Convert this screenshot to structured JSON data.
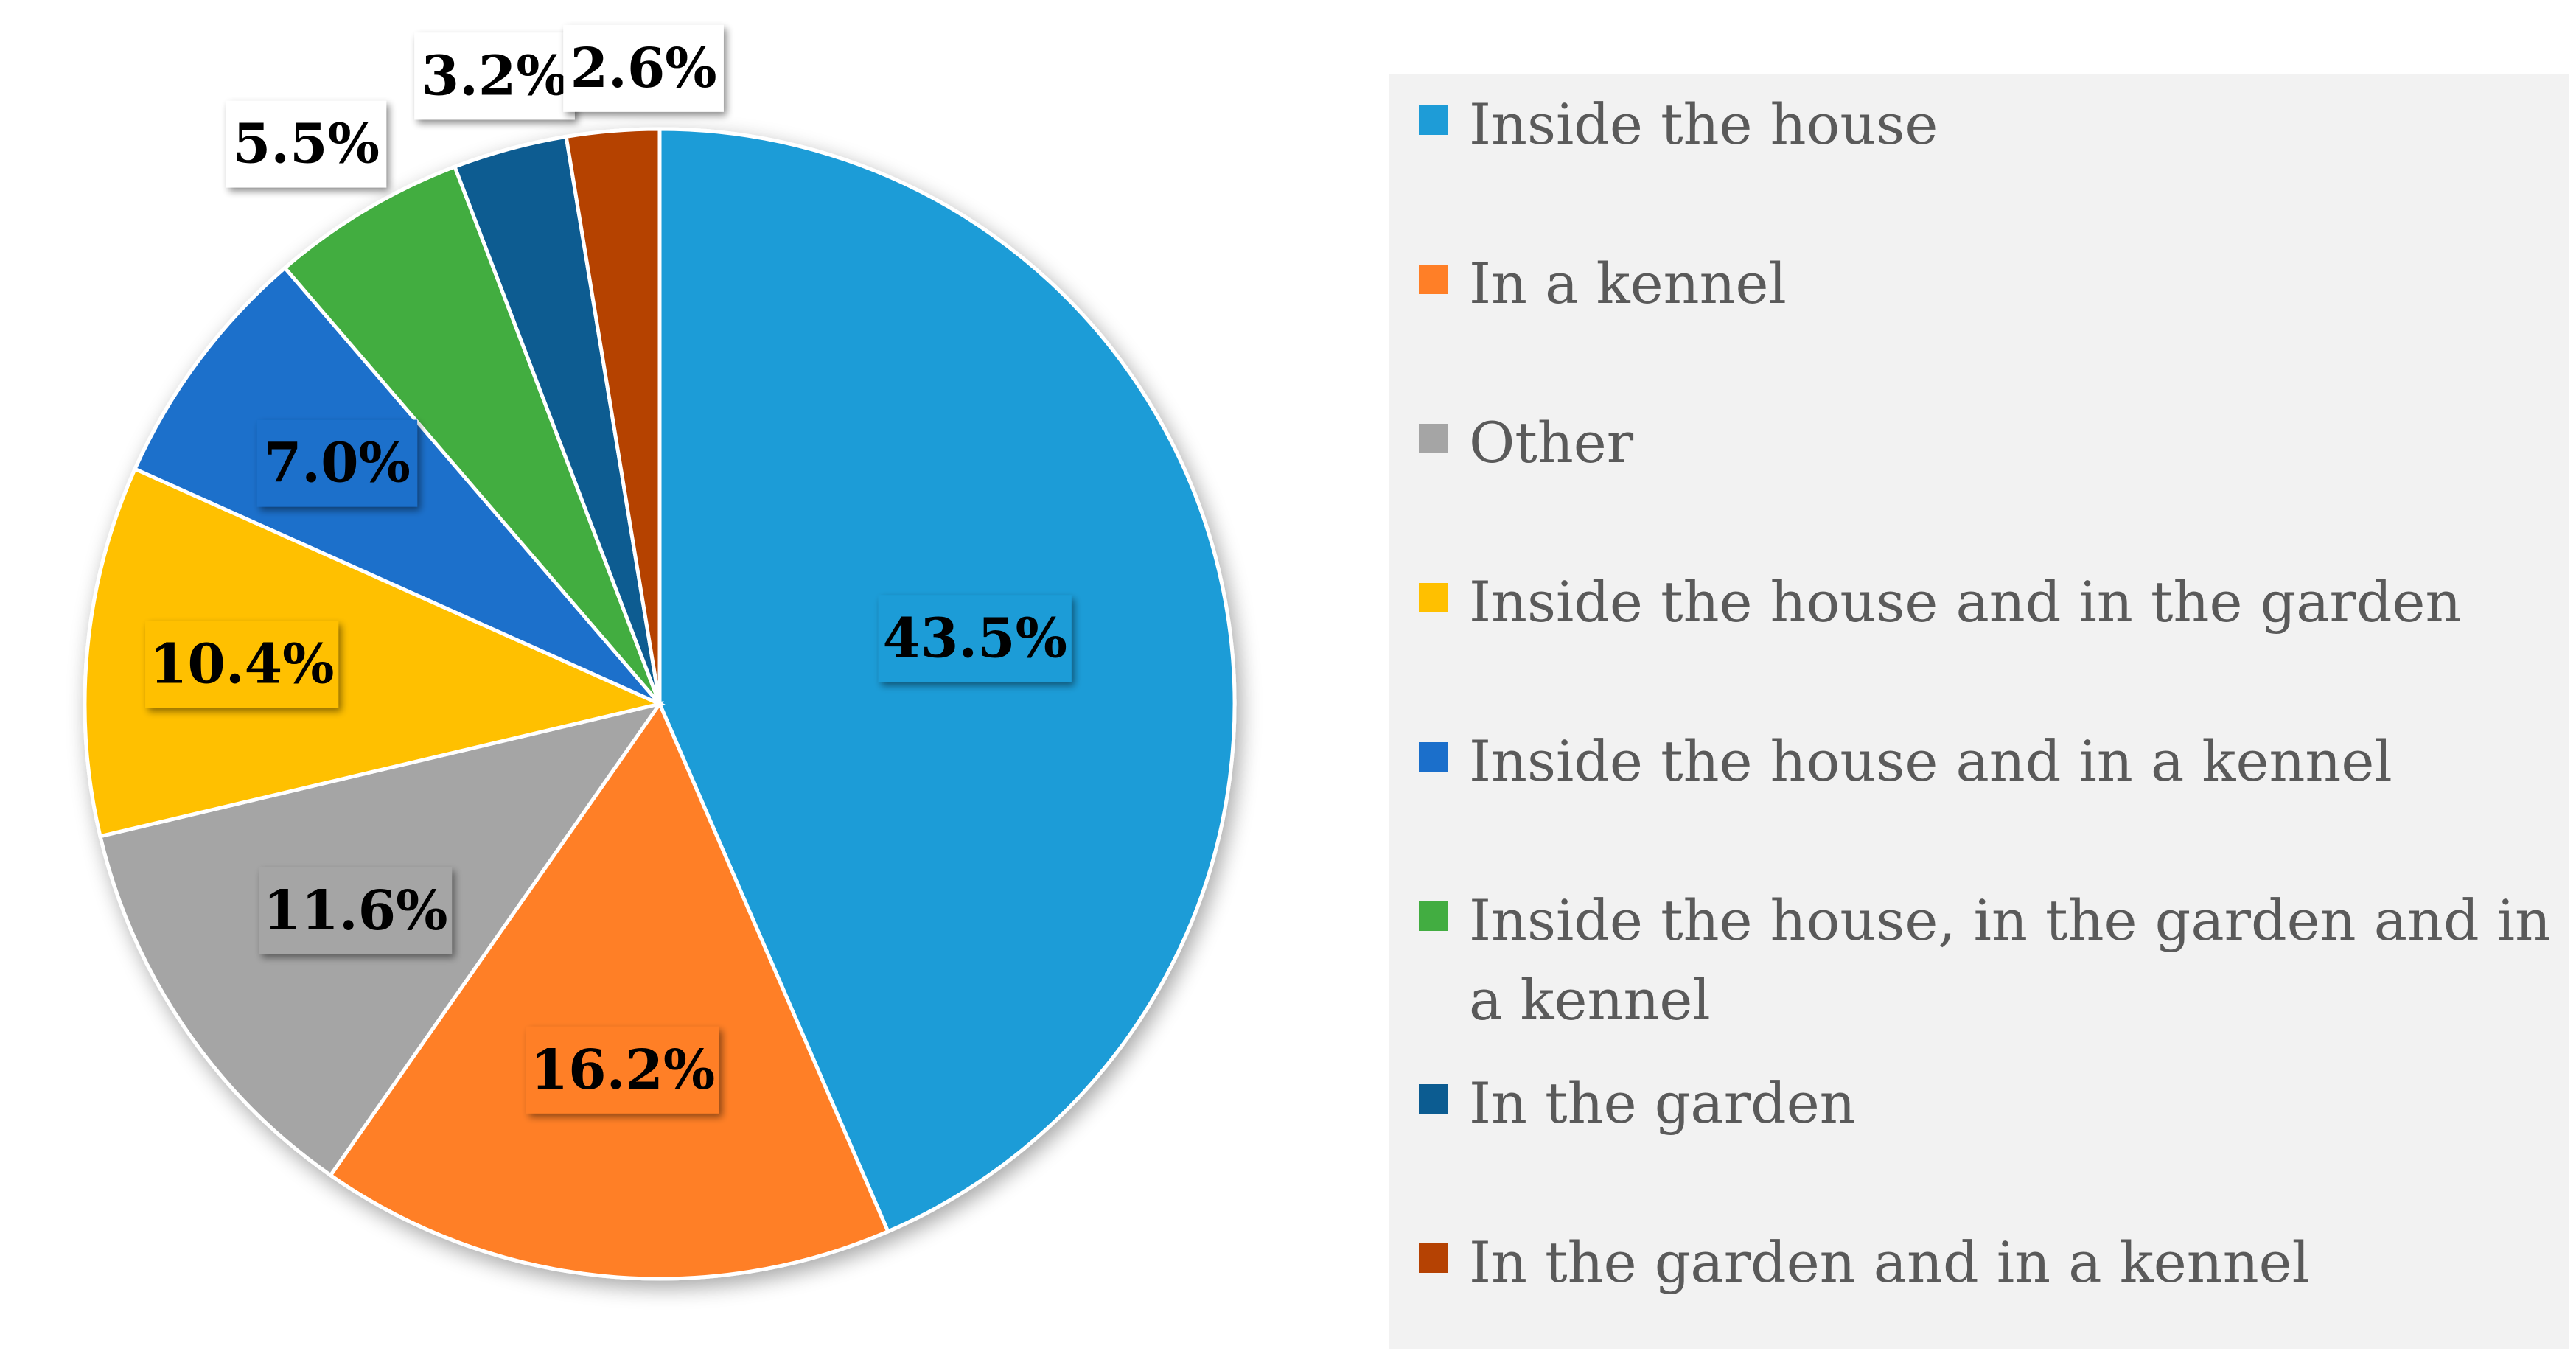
{
  "chart_data": {
    "type": "pie",
    "title": "",
    "slices": [
      {
        "label": "Inside the house",
        "value": 43.5,
        "value_label": "43.5%",
        "color": "#1E9CD7"
      },
      {
        "label": "In a kennel",
        "value": 16.2,
        "value_label": "16.2%",
        "color": "#FF7F27"
      },
      {
        "label": "Other",
        "value": 11.6,
        "value_label": "11.6%",
        "color": "#A5A5A5"
      },
      {
        "label": "Inside the house and in the garden",
        "value": 10.4,
        "value_label": "10.4%",
        "color": "#FFC000"
      },
      {
        "label": "Inside the house and in a kennel",
        "value": 7.0,
        "value_label": "7.0%",
        "color": "#1B6FCB"
      },
      {
        "label": "Inside the house, in the garden and in a kennel",
        "value": 5.5,
        "value_label": "5.5%",
        "color": "#42AD41"
      },
      {
        "label": "In the garden",
        "value": 3.2,
        "value_label": "3.2%",
        "color": "#0C5C91"
      },
      {
        "label": "In the garden and in a kennel",
        "value": 2.6,
        "value_label": "2.6%",
        "color": "#B54203"
      }
    ],
    "legend_position": "right"
  }
}
